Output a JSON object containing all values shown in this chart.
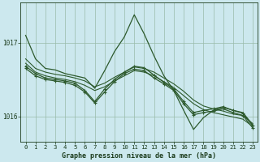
{
  "title": "Graphe pression niveau de la mer (hPa)",
  "background_color": "#cce8ee",
  "grid_color": "#99bbaa",
  "line_color": "#2d5a2d",
  "text_color": "#1a3a1a",
  "xlim": [
    -0.5,
    23.5
  ],
  "ylim": [
    1015.65,
    1017.55
  ],
  "yticks": [
    1016,
    1017
  ],
  "xticks": [
    0,
    1,
    2,
    3,
    4,
    5,
    6,
    7,
    8,
    9,
    10,
    11,
    12,
    13,
    14,
    15,
    16,
    17,
    18,
    19,
    20,
    21,
    22,
    23
  ],
  "series1": [
    1017.1,
    1016.78,
    1016.65,
    1016.63,
    1016.58,
    1016.55,
    1016.52,
    1016.38,
    1016.62,
    1016.88,
    1017.08,
    1017.38,
    1017.12,
    1016.82,
    1016.55,
    1016.35,
    1016.08,
    1015.82,
    1015.98,
    1016.08,
    1016.12,
    1016.08,
    1016.05,
    1015.88
  ],
  "series2": [
    1016.78,
    1016.65,
    1016.6,
    1016.57,
    1016.55,
    1016.52,
    1016.48,
    1016.4,
    1016.45,
    1016.53,
    1016.6,
    1016.67,
    1016.65,
    1016.6,
    1016.52,
    1016.44,
    1016.34,
    1016.22,
    1016.14,
    1016.1,
    1016.07,
    1016.03,
    1016.01,
    1015.9
  ],
  "series3": [
    1016.72,
    1016.6,
    1016.55,
    1016.52,
    1016.5,
    1016.47,
    1016.42,
    1016.35,
    1016.4,
    1016.48,
    1016.55,
    1016.62,
    1016.6,
    1016.55,
    1016.47,
    1016.39,
    1016.28,
    1016.17,
    1016.09,
    1016.05,
    1016.02,
    1015.99,
    1015.96,
    1015.86
  ],
  "series4_marked": [
    1016.68,
    1016.58,
    1016.52,
    1016.5,
    1016.48,
    1016.45,
    1016.35,
    1016.2,
    1016.37,
    1016.5,
    1016.6,
    1016.68,
    1016.66,
    1016.56,
    1016.46,
    1016.37,
    1016.2,
    1016.05,
    1016.08,
    1016.1,
    1016.13,
    1016.08,
    1016.04,
    1015.87
  ],
  "series5_marked": [
    1016.65,
    1016.55,
    1016.5,
    1016.48,
    1016.46,
    1016.42,
    1016.33,
    1016.18,
    1016.33,
    1016.47,
    1016.58,
    1016.64,
    1016.62,
    1016.52,
    1016.44,
    1016.35,
    1016.17,
    1016.02,
    1016.05,
    1016.07,
    1016.1,
    1016.05,
    1016.01,
    1015.84
  ]
}
